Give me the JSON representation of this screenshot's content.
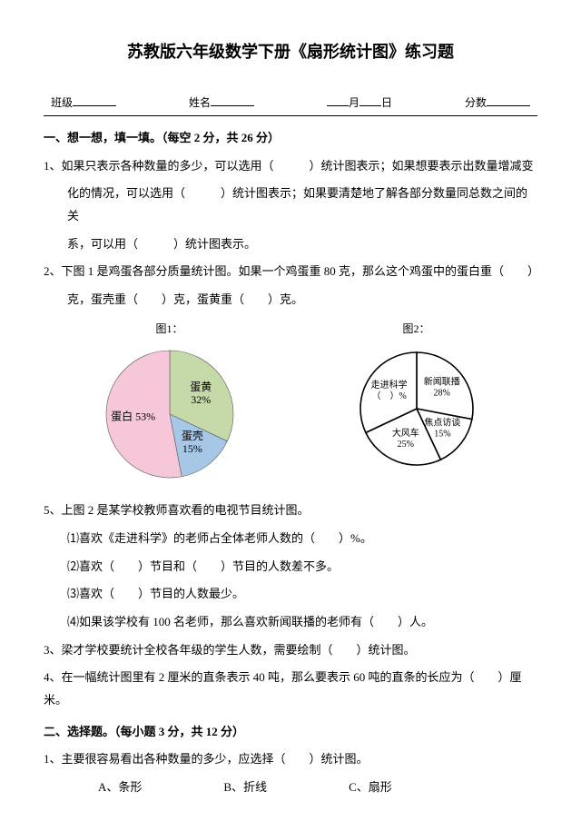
{
  "title": "苏教版六年级数学下册《扇形统计图》练习题",
  "info": {
    "class": "班级",
    "name": "姓名",
    "month": "月",
    "day": "日",
    "score": "分数"
  },
  "sec1": {
    "heading": "一、想一想，填一填。（每空 2 分，共 26 分）",
    "q1a": "1、如果只表示各种数量的多少，可以选用（　　　）统计图表示；如果想要表示出数量增减变",
    "q1b": "化的情况，可以选用（　　　）统计图表示；如果要清楚地了解各部分数量同总数之间的关",
    "q1c": "系，可以用（　　　）统计图表示。",
    "q2a": "2、下图 1 是鸡蛋各部分质量统计图。如果一个鸡蛋重 80 克，那么这个鸡蛋中的蛋白重（　　）",
    "q2b": "克，蛋壳重（　　）克，蛋黄重（　　）克。",
    "fig1": "图1：",
    "fig2": "图2：",
    "q5": "5、上图 2 是某学校教师喜欢看的电视节目统计图。",
    "q5_1": "⑴喜欢《走进科学》的老师占全体老师人数的（　　）%。",
    "q5_2": "⑵喜欢（　　）节目和（　　）节目的人数差不多。",
    "q5_3": "⑶喜欢（　　）节目的人数最少。",
    "q5_4": "⑷如果该学校有 100 名老师，那么喜欢新闻联播的老师有（　　）人。",
    "q3": "3、梁才学校要统计全校各年级的学生人数，需要绘制（　　）统计图。",
    "q4": "4、在一幅统计图里有 2 厘米的直条表示 40 吨，那么要表示 60 吨的直条的长应为（　　）厘米。"
  },
  "sec2": {
    "heading": "二、选择题。（每小题 3 分，共 12 分）",
    "q1": "1、主要很容易看出各种数量的多少，应选择（　　）统计图。",
    "optA": "A、条形",
    "optB": "B、折线",
    "optC": "C、扇形"
  },
  "chart1": {
    "type": "pie",
    "background": "#ffffff",
    "slices": [
      {
        "label": "蛋黄",
        "value": 32,
        "text": "蛋黄\n32%",
        "color": "#c6d9a8"
      },
      {
        "label": "蛋壳",
        "value": 15,
        "text": "蛋壳\n15%",
        "color": "#a7c7e7"
      },
      {
        "label": "蛋白",
        "value": 53,
        "text": "蛋白 53%",
        "color": "#f5c7d9"
      }
    ],
    "radius": 70,
    "label_fontsize": 12,
    "stroke": "#5a5a5a"
  },
  "chart2": {
    "type": "pie",
    "background": "#ffffff",
    "slices": [
      {
        "label": "新闻联播",
        "value": 28,
        "text": "新闻联播\n28%"
      },
      {
        "label": "焦点访谈",
        "value": 15,
        "text": "焦点访谈\n15%"
      },
      {
        "label": "大风车",
        "value": 25,
        "text": "大风车\n25%"
      },
      {
        "label": "走进科学",
        "value": 32,
        "text": "走进科学\n（　）%"
      }
    ],
    "radius": 62,
    "label_fontsize": 10,
    "stroke": "#000000",
    "fill": "#ffffff"
  }
}
